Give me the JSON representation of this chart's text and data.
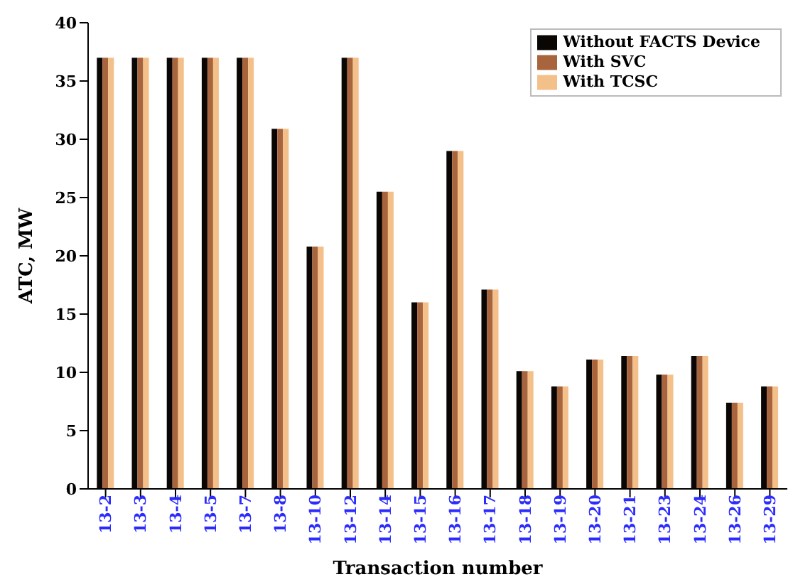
{
  "chart_data": {
    "type": "bar",
    "xlabel": "Transaction number",
    "ylabel": "ATC, MW",
    "categories": [
      "13-2",
      "13-3",
      "13-4",
      "13-5",
      "13-7",
      "13-8",
      "13-10",
      "13-12",
      "13-14",
      "13-15",
      "13-16",
      "13-17",
      "13-18",
      "13-19",
      "13-20",
      "13-21",
      "13-23",
      "13-24",
      "13-26",
      "13-29"
    ],
    "series": [
      {
        "name": "Without FACTS Device",
        "color": "#0a0604",
        "values": [
          37,
          37,
          37,
          37,
          37,
          30.9,
          20.8,
          37,
          25.5,
          16,
          29,
          17.1,
          10.1,
          8.8,
          11.1,
          11.4,
          9.8,
          11.4,
          7.4,
          8.8
        ]
      },
      {
        "name": "With SVC",
        "color": "#a8643c",
        "values": [
          37,
          37,
          37,
          37,
          37,
          30.9,
          20.8,
          37,
          25.5,
          16,
          29,
          17.1,
          10.1,
          8.8,
          11.1,
          11.4,
          9.8,
          11.4,
          7.4,
          8.8
        ]
      },
      {
        "name": "With TCSC",
        "color": "#f4c08a",
        "values": [
          37,
          37,
          37,
          37,
          37,
          30.9,
          20.8,
          37,
          25.5,
          16,
          29,
          17.1,
          10.1,
          8.8,
          11.1,
          11.4,
          9.8,
          11.4,
          7.4,
          8.8
        ]
      }
    ],
    "ylim": [
      0,
      40
    ],
    "yticks": [
      0,
      5,
      10,
      15,
      20,
      25,
      30,
      35,
      40
    ],
    "grid": false,
    "legend": "top right"
  }
}
